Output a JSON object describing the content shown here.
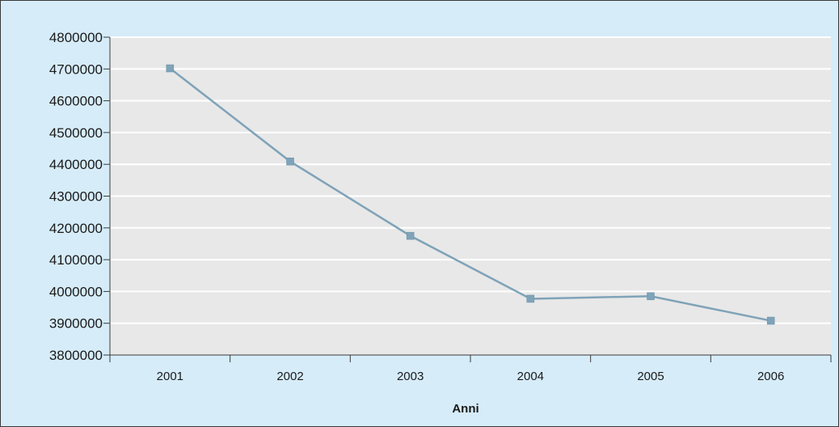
{
  "chart_data": {
    "type": "line",
    "title": "",
    "xlabel": "Anni",
    "ylabel": "",
    "categories": [
      "2001",
      "2002",
      "2003",
      "2004",
      "2005",
      "2006"
    ],
    "series": [
      {
        "values": [
          4702000,
          4409000,
          4175000,
          3977000,
          3985000,
          3908000
        ],
        "color": "#7fa3b8"
      }
    ],
    "ylim": [
      3800000,
      4800000
    ],
    "yticks": [
      "3800000",
      "3900000",
      "4000000",
      "4100000",
      "4200000",
      "4300000",
      "4400000",
      "4500000",
      "4600000",
      "4700000",
      "4800000"
    ],
    "grid": true,
    "legend": "none",
    "colors": {
      "background": "#d6ecf9",
      "plot_area": "#e8e8e8",
      "gridline": "#ffffff",
      "axis": "#3a3a3a"
    }
  }
}
